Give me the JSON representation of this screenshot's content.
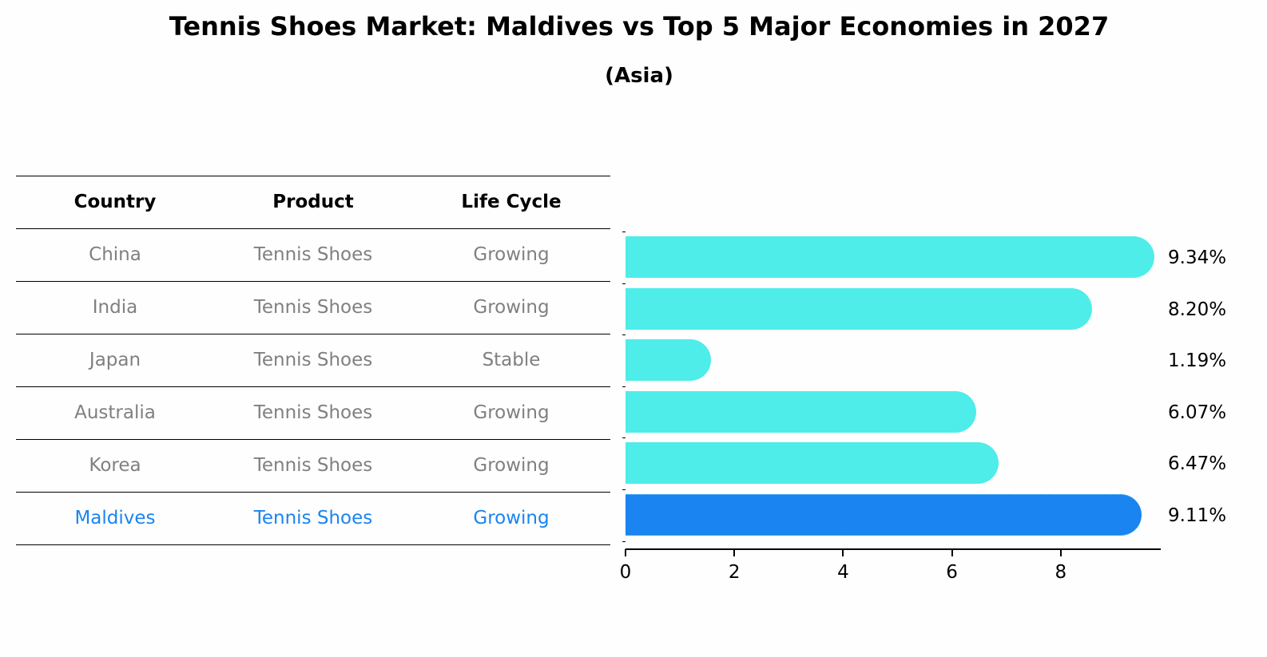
{
  "title": "Tennis Shoes Market: Maldives vs Top 5 Major Economies in 2027",
  "subtitle": "(Asia)",
  "table": {
    "headers": [
      "Country",
      "Product",
      "Life Cycle"
    ],
    "rows": [
      {
        "country": "China",
        "product": "Tennis Shoes",
        "life_cycle": "Growing"
      },
      {
        "country": "India",
        "product": "Tennis Shoes",
        "life_cycle": "Growing"
      },
      {
        "country": "Japan",
        "product": "Tennis Shoes",
        "life_cycle": "Stable"
      },
      {
        "country": "Australia",
        "product": "Tennis Shoes",
        "life_cycle": "Growing"
      },
      {
        "country": "Korea",
        "product": "Tennis Shoes",
        "life_cycle": "Growing"
      },
      {
        "country": "Maldives",
        "product": "Tennis Shoes",
        "life_cycle": "Growing"
      }
    ]
  },
  "colors": {
    "bar_default": "#4eede9",
    "bar_highlight": "#1a84f0",
    "text_muted": "#808080",
    "text_highlight": "#1a84f0"
  },
  "chart_data": {
    "type": "bar",
    "orientation": "horizontal",
    "title": "Tennis Shoes Market: Maldives vs Top 5 Major Economies in 2027",
    "subtitle": "(Asia)",
    "categories": [
      "China",
      "India",
      "Japan",
      "Australia",
      "Korea",
      "Maldives"
    ],
    "values": [
      9.34,
      8.2,
      1.19,
      6.07,
      6.47,
      9.11
    ],
    "value_labels": [
      "9.34%",
      "8.20%",
      "1.19%",
      "6.07%",
      "6.47%",
      "9.11%"
    ],
    "highlight": "Maldives",
    "xlabel": "",
    "ylabel": "",
    "xticks": [
      "0",
      "2",
      "4",
      "6",
      "8"
    ],
    "xlim": [
      0,
      9.8
    ],
    "grid": false,
    "legend": null
  }
}
